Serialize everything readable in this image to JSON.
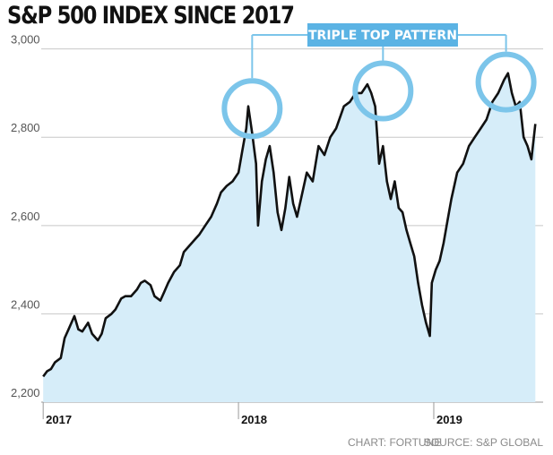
{
  "chart_data": {
    "type": "area",
    "title": "S&P 500 INDEX SINCE 2017",
    "xlabel": "",
    "ylabel": "",
    "ylim": [
      2200,
      3050
    ],
    "xlim": [
      2016.99,
      2019.56
    ],
    "y_ticks": [
      {
        "value": 3000,
        "label": "3,000"
      },
      {
        "value": 2800,
        "label": "2,800"
      },
      {
        "value": 2600,
        "label": "2,600"
      },
      {
        "value": 2400,
        "label": "2,400"
      },
      {
        "value": 2200,
        "label": "2,200"
      }
    ],
    "x_ticks": [
      {
        "value": 2017,
        "label": "2017"
      },
      {
        "value": 2018,
        "label": "2018"
      },
      {
        "value": 2019,
        "label": "2019"
      }
    ],
    "grid": "horizontal",
    "x": [
      2017.0,
      2017.02,
      2017.04,
      2017.06,
      2017.09,
      2017.11,
      2017.13,
      2017.16,
      2017.18,
      2017.2,
      2017.23,
      2017.25,
      2017.28,
      2017.3,
      2017.32,
      2017.35,
      2017.37,
      2017.4,
      2017.42,
      2017.45,
      2017.48,
      2017.5,
      2017.52,
      2017.55,
      2017.57,
      2017.6,
      2017.62,
      2017.64,
      2017.67,
      2017.7,
      2017.72,
      2017.75,
      2017.78,
      2017.8,
      2017.83,
      2017.86,
      2017.89,
      2017.91,
      2017.94,
      2017.97,
      2018.0,
      2018.02,
      2018.04,
      2018.05,
      2018.07,
      2018.09,
      2018.1,
      2018.12,
      2018.14,
      2018.16,
      2018.18,
      2018.2,
      2018.22,
      2018.24,
      2018.26,
      2018.28,
      2018.3,
      2018.32,
      2018.35,
      2018.38,
      2018.41,
      2018.44,
      2018.47,
      2018.5,
      2018.54,
      2018.57,
      2018.6,
      2018.63,
      2018.66,
      2018.68,
      2018.7,
      2018.72,
      2018.74,
      2018.76,
      2018.78,
      2018.8,
      2018.82,
      2018.84,
      2018.86,
      2018.88,
      2018.9,
      2018.92,
      2018.94,
      2018.96,
      2018.98,
      2018.99,
      2019.01,
      2019.03,
      2019.05,
      2019.07,
      2019.09,
      2019.12,
      2019.15,
      2019.18,
      2019.21,
      2019.24,
      2019.27,
      2019.3,
      2019.33,
      2019.36,
      2019.38,
      2019.4,
      2019.42,
      2019.44,
      2019.46,
      2019.48,
      2019.5,
      2019.52
    ],
    "series": [
      {
        "name": "",
        "values": [
          2258,
          2270,
          2275,
          2290,
          2300,
          2345,
          2365,
          2395,
          2365,
          2360,
          2380,
          2355,
          2340,
          2355,
          2390,
          2400,
          2410,
          2435,
          2440,
          2440,
          2455,
          2470,
          2475,
          2465,
          2440,
          2430,
          2450,
          2470,
          2495,
          2510,
          2540,
          2555,
          2570,
          2580,
          2600,
          2620,
          2650,
          2675,
          2690,
          2700,
          2720,
          2770,
          2820,
          2870,
          2810,
          2740,
          2600,
          2700,
          2750,
          2780,
          2720,
          2630,
          2590,
          2640,
          2710,
          2650,
          2620,
          2660,
          2720,
          2700,
          2780,
          2760,
          2800,
          2820,
          2870,
          2880,
          2900,
          2900,
          2920,
          2900,
          2870,
          2740,
          2780,
          2700,
          2660,
          2700,
          2640,
          2630,
          2590,
          2560,
          2530,
          2470,
          2420,
          2380,
          2350,
          2470,
          2500,
          2520,
          2560,
          2610,
          2660,
          2720,
          2740,
          2780,
          2800,
          2820,
          2840,
          2880,
          2900,
          2930,
          2945,
          2900,
          2870,
          2880,
          2800,
          2780,
          2750,
          2830
        ]
      }
    ],
    "annotation": {
      "label": "TRIPLE TOP PATTERN",
      "peaks": [
        {
          "x": 2018.07,
          "y": 2865
        },
        {
          "x": 2018.74,
          "y": 2905
        },
        {
          "x": 2019.37,
          "y": 2925
        }
      ]
    },
    "credits": [
      "CHART: FORTUNE",
      "SOURCE: S&P GLOBAL"
    ],
    "colors": {
      "line": "#111111",
      "area": "#d6edf9",
      "highlight": "#7cc5ea",
      "label_bg": "#5bb3e4",
      "grid": "#c8c8c8"
    }
  }
}
